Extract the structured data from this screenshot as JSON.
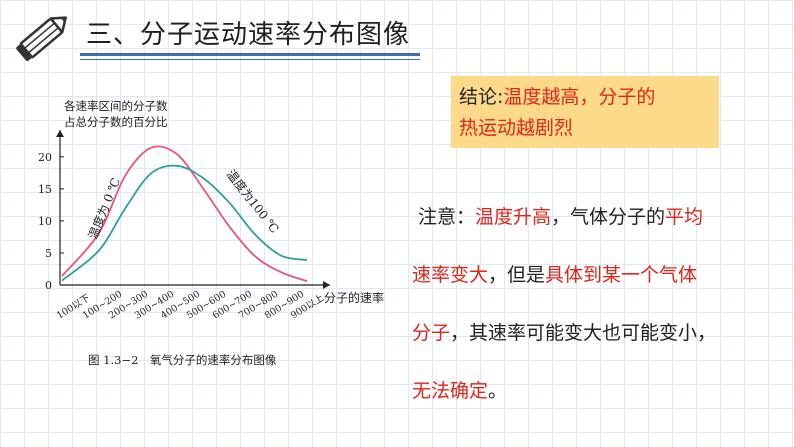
{
  "header": {
    "title": "三、分子运动速率分布图像"
  },
  "chart_data": {
    "type": "line",
    "ylabel_lines": [
      "各速率区间的分子数",
      "占总分子数的百分比"
    ],
    "xlabel": "分子的速率",
    "yticks": [
      0,
      5,
      10,
      15,
      20
    ],
    "ylim": [
      0,
      22
    ],
    "categories": [
      "100以下",
      "100~200",
      "200~300",
      "300~400",
      "400~500",
      "500~600",
      "600~700",
      "700~800",
      "800~900",
      "900以上"
    ],
    "series": [
      {
        "name": "温度为 0 ℃",
        "color": "#e8547a",
        "values": [
          1.4,
          8.1,
          17.0,
          21.4,
          20.4,
          15.1,
          9.2,
          4.5,
          2.0,
          0.6
        ]
      },
      {
        "name": "温度为100 ℃",
        "color": "#2e9ea3",
        "values": [
          0.7,
          5.4,
          11.9,
          17.4,
          18.6,
          16.7,
          12.9,
          7.9,
          4.6,
          3.9
        ]
      }
    ],
    "grid": false,
    "caption": "图 1.3−2　氧气分子的速率分布图像"
  },
  "conclusion": {
    "label": "结论:",
    "text_line1": "温度越高，分子的",
    "text_line2": "热运动越剧烈"
  },
  "note": {
    "label": "注意：",
    "lines": [
      [
        {
          "t": "温度升高",
          "red": true
        },
        {
          "t": "，气体分子的",
          "red": false
        },
        {
          "t": "平均",
          "red": true
        }
      ],
      [
        {
          "t": "速率变大",
          "red": true
        },
        {
          "t": "，但是",
          "red": false
        },
        {
          "t": "具体到某一个气体",
          "red": true
        }
      ],
      [
        {
          "t": "分子",
          "red": true
        },
        {
          "t": "，其速率可能变大也可能变小，",
          "red": false
        }
      ],
      [
        {
          "t": "无法确定",
          "red": true
        },
        {
          "t": "。",
          "red": false
        }
      ]
    ]
  },
  "colors": {
    "accent_blue": "#3d6fb5",
    "highlight_bg": "#fdda8a",
    "emphasis_red": "#e1251b"
  }
}
